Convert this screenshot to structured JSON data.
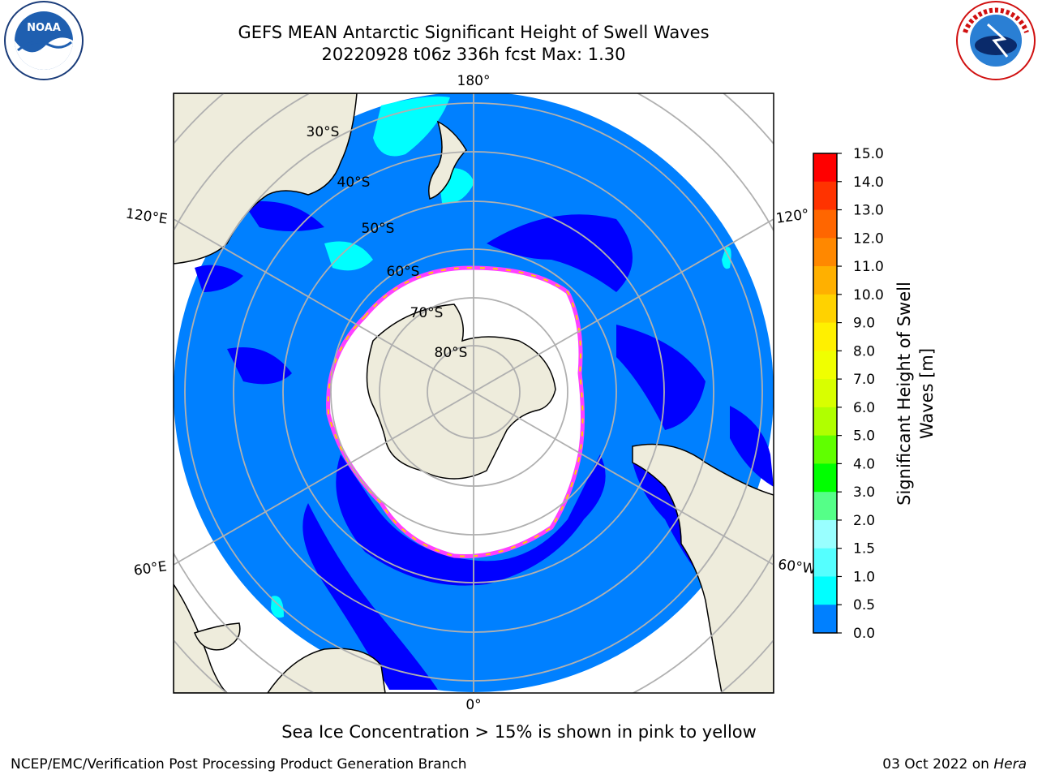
{
  "header": {
    "title_line1": "GEFS MEAN Antarctic Significant Height of Swell Waves",
    "title_line2": "20220928 t06z 336h fcst   Max: 1.30"
  },
  "logos": {
    "left": "noaa-logo",
    "right": "nws-logo"
  },
  "map": {
    "projection": "south-polar-stereographic",
    "lon_labels": [
      "180°",
      "120°E",
      "120°",
      "60°E",
      "60°W",
      "0°"
    ],
    "lat_labels": [
      "30°S",
      "40°S",
      "50°S",
      "60°S",
      "70°S",
      "80°S"
    ],
    "colors": {
      "ocean_low": "#0000ff",
      "ocean_mid": "#0080ff",
      "cyan": "#00ffff",
      "land": "#eeecdc",
      "ice_edge": "#ff40ff"
    }
  },
  "colorbar": {
    "label_line1": "Significant Height of Swell",
    "label_line2": "Waves [m]",
    "ticks": [
      "15.0",
      "14.0",
      "13.0",
      "12.0",
      "11.0",
      "10.0",
      "9.0",
      "8.0",
      "7.0",
      "6.0",
      "5.0",
      "4.0",
      "3.0",
      "2.0",
      "1.5",
      "1.0",
      "0.5",
      "0.0"
    ],
    "colors": [
      "#ff0000",
      "#ff3300",
      "#ff6600",
      "#ff8800",
      "#ffb000",
      "#ffd200",
      "#fff000",
      "#f0ff00",
      "#d8ff00",
      "#b0ff00",
      "#60ff00",
      "#00ff00",
      "#00cc44",
      "#55ff88",
      "#99ffff",
      "#55ffff",
      "#00ffff",
      "#0080ff",
      "#0000ff"
    ]
  },
  "caption": "Sea Ice Concentration > 15% is shown in pink to yellow",
  "footer": {
    "left": "NCEP/EMC/Verification Post Processing Product Generation Branch",
    "date": "03 Oct 2022 on ",
    "host": "Hera"
  }
}
